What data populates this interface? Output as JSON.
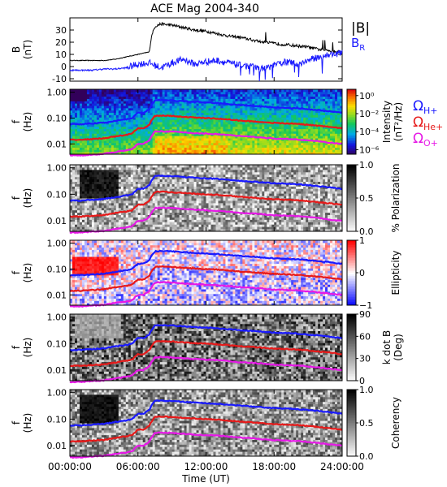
{
  "chart_data": {
    "type": "heatmap",
    "title": "ACE Mag 2004-340",
    "time_axis": {
      "label": "Time (UT)",
      "ticks": [
        "00:00:00",
        "06:00:00",
        "12:00:00",
        "18:00:00",
        "24:00:00"
      ],
      "range_hours": [
        0,
        24
      ]
    },
    "line_panel": {
      "type": "line",
      "ylabel": "B",
      "yunit": "(nT)",
      "ylim": [
        -12,
        40
      ],
      "yticks": [
        "30",
        "20",
        "10",
        "0",
        "-10"
      ],
      "ytick_values": [
        30,
        20,
        10,
        0,
        -10
      ],
      "legend": [
        {
          "name": "|B|",
          "color": "#000000"
        },
        {
          "name": "B",
          "subscript": "R",
          "color": "#1a1aff"
        }
      ],
      "series": [
        {
          "name": "|B|",
          "color": "#000000",
          "x": [
            0,
            1,
            2,
            3,
            4,
            4.5,
            5,
            5.5,
            6,
            6.5,
            7,
            7.2,
            7.5,
            8,
            9,
            10,
            11,
            12,
            13,
            14,
            15,
            16,
            17,
            18,
            19,
            20,
            21,
            22,
            23,
            24
          ],
          "y": [
            5,
            5,
            5,
            5,
            6,
            7,
            8,
            9,
            10,
            11,
            12,
            25,
            33,
            35,
            34,
            32,
            30,
            29,
            27,
            25,
            24,
            22,
            20,
            19,
            18,
            17,
            16,
            14,
            13,
            12
          ]
        },
        {
          "name": "B_R",
          "color": "#1a1aff",
          "x": [
            0,
            1,
            2,
            3,
            4,
            5,
            6,
            7,
            8,
            9,
            10,
            11,
            12,
            13,
            14,
            15,
            16,
            17,
            18,
            19,
            20,
            21,
            22,
            23,
            24
          ],
          "y": [
            -3,
            -3,
            -3,
            -2,
            -2,
            -1,
            2,
            3,
            -1,
            3,
            6,
            2,
            4,
            5,
            3,
            1,
            0,
            -2,
            1,
            4,
            2,
            5,
            8,
            10,
            11
          ]
        }
      ]
    },
    "freq_panels": {
      "ylabel": "f",
      "yunit": "(Hz)",
      "yticks": [
        "1.00",
        "0.10",
        "0.01"
      ],
      "ylim_hz": [
        0.004,
        1.3
      ],
      "scale": "log"
    },
    "gyro_lines": [
      {
        "label": "Ω",
        "subscript": "H+",
        "color": "#1a1aff",
        "x": [
          0,
          1,
          2,
          3,
          4,
          5,
          5.5,
          6,
          6.5,
          7,
          7.5,
          8,
          9,
          10,
          11,
          12,
          13,
          14,
          15,
          16,
          17,
          18,
          19,
          20,
          21,
          22,
          23,
          24
        ],
        "y": [
          0.058,
          0.058,
          0.062,
          0.066,
          0.078,
          0.09,
          0.1,
          0.16,
          0.16,
          0.22,
          0.48,
          0.5,
          0.48,
          0.45,
          0.42,
          0.4,
          0.38,
          0.35,
          0.32,
          0.3,
          0.28,
          0.26,
          0.25,
          0.24,
          0.22,
          0.2,
          0.18,
          0.16
        ]
      },
      {
        "label": "Ω",
        "subscript": "He+",
        "color": "#e61a1a",
        "x": [
          0,
          1,
          2,
          3,
          4,
          5,
          5.5,
          6,
          6.5,
          7,
          7.5,
          8,
          9,
          10,
          11,
          12,
          13,
          14,
          15,
          16,
          17,
          18,
          19,
          20,
          21,
          22,
          23,
          24
        ],
        "y": [
          0.0145,
          0.0145,
          0.0155,
          0.0165,
          0.0195,
          0.0225,
          0.025,
          0.04,
          0.04,
          0.055,
          0.12,
          0.125,
          0.12,
          0.112,
          0.105,
          0.1,
          0.095,
          0.088,
          0.08,
          0.075,
          0.07,
          0.065,
          0.062,
          0.06,
          0.055,
          0.05,
          0.045,
          0.04
        ]
      },
      {
        "label": "Ω",
        "subscript": "O+",
        "color": "#e619e6",
        "x": [
          0,
          1,
          2,
          3,
          4,
          5,
          5.5,
          6,
          6.5,
          7,
          7.5,
          8,
          9,
          10,
          11,
          12,
          13,
          14,
          15,
          16,
          17,
          18,
          19,
          20,
          21,
          22,
          23,
          24
        ],
        "y": [
          0.0036,
          0.0036,
          0.0039,
          0.0041,
          0.0049,
          0.0056,
          0.0062,
          0.01,
          0.01,
          0.0137,
          0.03,
          0.031,
          0.03,
          0.028,
          0.026,
          0.025,
          0.024,
          0.022,
          0.02,
          0.019,
          0.0175,
          0.016,
          0.0155,
          0.015,
          0.0137,
          0.0125,
          0.011,
          0.01
        ]
      }
    ],
    "spectrogram_panels": [
      {
        "id": "intensity",
        "colormap": "rainbow",
        "colorbar_label": "Intensity",
        "colorbar_unit": "(nT²/Hz)",
        "colorbar_ticks": [
          "10⁰",
          "10⁻²",
          "10⁻⁴",
          "10⁻⁶"
        ],
        "colorbar_tick_values": [
          1,
          0.01,
          0.0001,
          1e-06
        ]
      },
      {
        "id": "polarization",
        "colormap": "gray",
        "colorbar_label": "% Polarization",
        "colorbar_unit": "",
        "colorbar_ticks": [
          "1.0",
          "0.5",
          "0.0"
        ],
        "colorbar_tick_values": [
          1.0,
          0.5,
          0.0
        ]
      },
      {
        "id": "ellipticity",
        "colormap": "bwr",
        "colorbar_label": "Ellipticity",
        "colorbar_unit": "",
        "colorbar_ticks": [
          "1",
          "0",
          "−1"
        ],
        "colorbar_tick_values": [
          1,
          0,
          -1
        ]
      },
      {
        "id": "kdotb",
        "colormap": "gray_r",
        "colorbar_label": "k dot B",
        "colorbar_unit": "(Deg)",
        "colorbar_ticks": [
          "90",
          "60",
          "30",
          "0"
        ],
        "colorbar_tick_values": [
          90,
          60,
          30,
          0
        ]
      },
      {
        "id": "coherency",
        "colormap": "gray",
        "colorbar_label": "Coherency",
        "colorbar_unit": "",
        "colorbar_ticks": [
          "1.0",
          "0.5",
          "0.0"
        ],
        "colorbar_tick_values": [
          1.0,
          0.5,
          0.0
        ]
      }
    ]
  }
}
